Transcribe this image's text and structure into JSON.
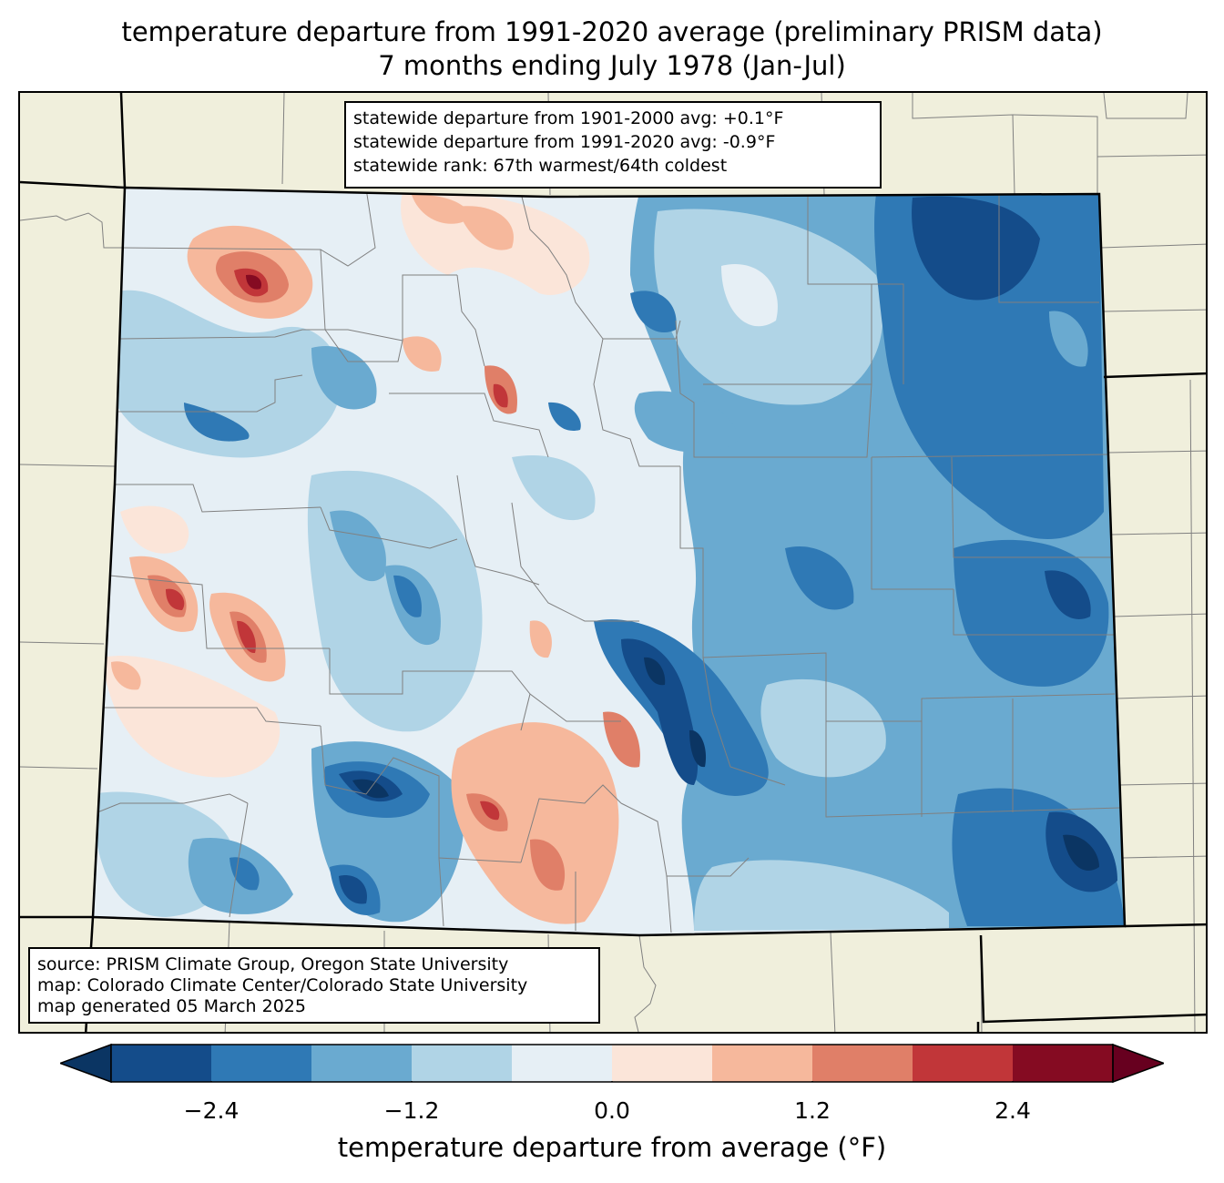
{
  "title": {
    "line1": "temperature departure from 1991-2020 average (preliminary PRISM data)",
    "line2": "7 months ending July 1978 (Jan-Jul)"
  },
  "stats": {
    "line1": "statewide departure from 1901-2000 avg: +0.1°F",
    "line2": "statewide departure from 1991-2020 avg: -0.9°F",
    "line3": "statewide rank: 67th warmest/64th coldest"
  },
  "source": {
    "line1": "source: PRISM Climate Group, Oregon State University",
    "line2": "map: Colorado Climate Center/Colorado State University",
    "line3": "map generated 05 March 2025"
  },
  "colorbar": {
    "label": "temperature departure from average (°F)",
    "ticks": [
      "−2.4",
      "−1.2",
      "0.0",
      "1.2",
      "2.4"
    ],
    "tick_values": [
      -2.4,
      -1.2,
      0.0,
      1.2,
      2.4
    ],
    "range": [
      -3.0,
      3.0
    ],
    "bounds": [
      -3.0,
      -2.4,
      -1.8,
      -1.2,
      -0.6,
      0.0,
      0.6,
      1.2,
      1.8,
      2.4,
      3.0
    ],
    "colors": [
      "#144c8a",
      "#2f79b5",
      "#6aaad0",
      "#b0d4e6",
      "#e6eff5",
      "#fbe5d9",
      "#f6b89c",
      "#e07f68",
      "#c13639",
      "#850b22"
    ],
    "under_color": "#0b3563",
    "over_color": "#67001f"
  },
  "colors": {
    "land": "#f0efdc",
    "county_lines": "#808080",
    "state_lines": "#000000"
  }
}
